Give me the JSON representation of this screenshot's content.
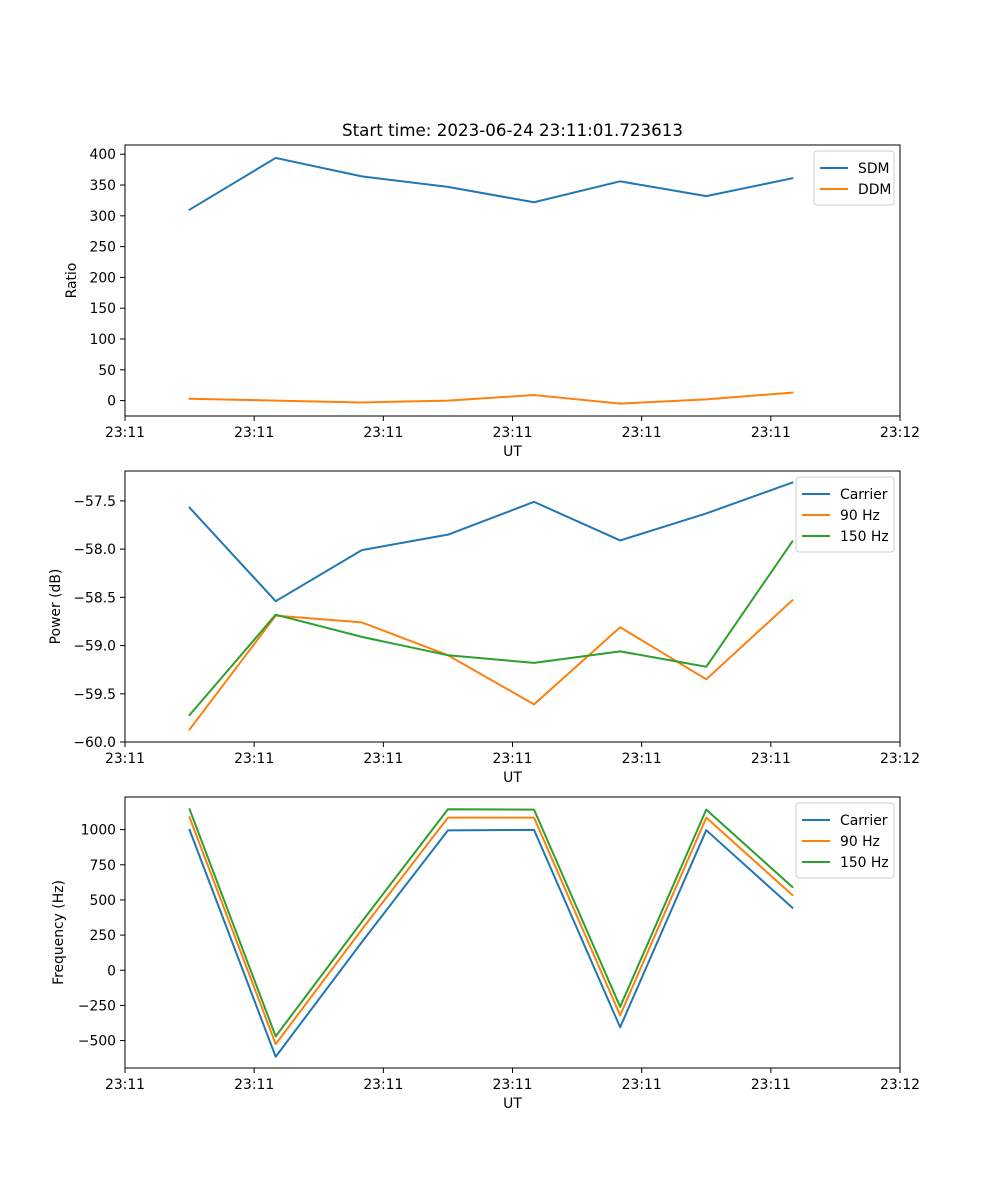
{
  "colors": {
    "c0": "#1f77b4",
    "c1": "#ff7f0e",
    "c2": "#2ca02c"
  },
  "chart_data": [
    {
      "type": "line",
      "title": "Start time: 2023-06-24 23:11:01.723613",
      "xlabel": "UT",
      "ylabel": "Ratio",
      "x": [
        1,
        2,
        3,
        4,
        5,
        6,
        7,
        8
      ],
      "xlim": [
        0.25,
        9.25
      ],
      "xticks": [
        0.25,
        1.75,
        3.25,
        4.75,
        6.25,
        7.75,
        9.25
      ],
      "xtick_labels": [
        "23:11",
        "23:11",
        "23:11",
        "23:11",
        "23:11",
        "23:11",
        "23:12"
      ],
      "ylim": [
        -25,
        415
      ],
      "yticks": [
        0,
        50,
        100,
        150,
        200,
        250,
        300,
        350,
        400
      ],
      "ytick_labels": [
        "0",
        "50",
        "100",
        "150",
        "200",
        "250",
        "300",
        "350",
        "400"
      ],
      "legend_position": "top-right",
      "series": [
        {
          "name": "SDM",
          "color": "#1f77b4",
          "values": [
            310,
            394,
            364,
            347,
            322,
            356,
            332,
            361
          ]
        },
        {
          "name": "DDM",
          "color": "#ff7f0e",
          "values": [
            3,
            0,
            -3,
            0,
            9,
            -5,
            2,
            13
          ]
        }
      ]
    },
    {
      "type": "line",
      "title": "",
      "xlabel": "UT",
      "ylabel": "Power (dB)",
      "x": [
        1,
        2,
        3,
        4,
        5,
        6,
        7,
        8
      ],
      "xlim": [
        0.25,
        9.25
      ],
      "xticks": [
        0.25,
        1.75,
        3.25,
        4.75,
        6.25,
        7.75,
        9.25
      ],
      "xtick_labels": [
        "23:11",
        "23:11",
        "23:11",
        "23:11",
        "23:11",
        "23:11",
        "23:12"
      ],
      "ylim": [
        -60.0,
        -57.19
      ],
      "yticks": [
        -60.0,
        -59.5,
        -59.0,
        -58.5,
        -58.0,
        -57.5
      ],
      "ytick_labels": [
        "−60.0",
        "−59.5",
        "−59.0",
        "−58.5",
        "−58.0",
        "−57.5"
      ],
      "legend_position": "top-right",
      "series": [
        {
          "name": "Carrier",
          "color": "#1f77b4",
          "values": [
            -57.57,
            -58.54,
            -58.01,
            -57.85,
            -57.51,
            -57.91,
            -57.63,
            -57.31
          ]
        },
        {
          "name": "90 Hz",
          "color": "#ff7f0e",
          "values": [
            -59.87,
            -58.69,
            -58.76,
            -59.1,
            -59.61,
            -58.81,
            -59.35,
            -58.53
          ]
        },
        {
          "name": "150 Hz",
          "color": "#2ca02c",
          "values": [
            -59.72,
            -58.68,
            -58.91,
            -59.1,
            -59.18,
            -59.06,
            -59.22,
            -57.92
          ]
        }
      ]
    },
    {
      "type": "line",
      "title": "",
      "xlabel": "UT",
      "ylabel": "Frequency (Hz)",
      "x": [
        1,
        2,
        3,
        4,
        5,
        6,
        7,
        8
      ],
      "xlim": [
        0.25,
        9.25
      ],
      "xticks": [
        0.25,
        1.75,
        3.25,
        4.75,
        6.25,
        7.75,
        9.25
      ],
      "xtick_labels": [
        "23:11",
        "23:11",
        "23:11",
        "23:11",
        "23:11",
        "23:11",
        "23:12"
      ],
      "ylim": [
        -695,
        1232
      ],
      "yticks": [
        -500,
        -250,
        0,
        250,
        500,
        750,
        1000
      ],
      "ytick_labels": [
        "−500",
        "−250",
        "0",
        "250",
        "500",
        "750",
        "1000"
      ],
      "legend_position": "top-right",
      "series": [
        {
          "name": "Carrier",
          "color": "#1f77b4",
          "values": [
            998,
            -615,
            200,
            995,
            998,
            -405,
            996,
            445
          ]
        },
        {
          "name": "90 Hz",
          "color": "#ff7f0e",
          "values": [
            1087,
            -525,
            290,
            1085,
            1085,
            -320,
            1085,
            535
          ]
        },
        {
          "name": "150 Hz",
          "color": "#2ca02c",
          "values": [
            1145,
            -470,
            345,
            1145,
            1142,
            -260,
            1142,
            592
          ]
        }
      ]
    }
  ]
}
